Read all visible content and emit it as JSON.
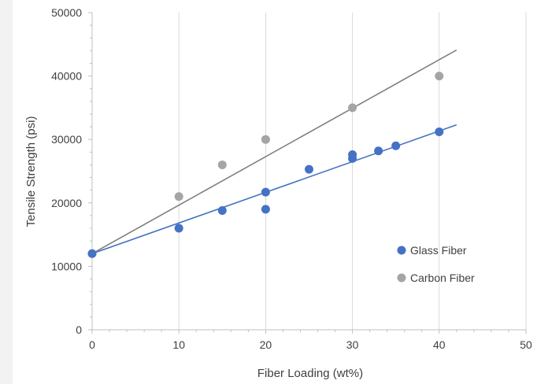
{
  "colors": {
    "glass": "#4472C4",
    "carbon": "#A5A5A5",
    "carbon_line": "#808080",
    "grid": "#D9D9D9",
    "axis": "#BFBFBF",
    "text": "#404040",
    "frame_bg": "#F2F2F2"
  },
  "chart_data": {
    "type": "scatter",
    "title": "",
    "xlabel": "Fiber Loading (wt%)",
    "ylabel": "Tensile Strength (psi)",
    "xlim": [
      0,
      50
    ],
    "ylim": [
      0,
      50000
    ],
    "x_ticks": [
      0,
      10,
      20,
      30,
      40,
      50
    ],
    "y_ticks": [
      0,
      10000,
      20000,
      30000,
      40000,
      50000
    ],
    "grid": {
      "vertical_major": true,
      "horizontal_major": false
    },
    "legend_position": "right",
    "series": [
      {
        "name": "Glass Fiber",
        "color": "#4472C4",
        "points": [
          [
            0,
            12000
          ],
          [
            10,
            16000
          ],
          [
            15,
            18800
          ],
          [
            20,
            19000
          ],
          [
            20,
            21700
          ],
          [
            25,
            25300
          ],
          [
            30,
            27000
          ],
          [
            30,
            27600
          ],
          [
            33,
            28200
          ],
          [
            35,
            29000
          ],
          [
            40,
            31200
          ]
        ],
        "trendline": {
          "type": "linear",
          "x_range": [
            0,
            42
          ],
          "y_range": [
            12000,
            32300
          ]
        }
      },
      {
        "name": "Carbon Fiber",
        "color": "#A5A5A5",
        "points": [
          [
            0,
            12000
          ],
          [
            10,
            21000
          ],
          [
            15,
            26000
          ],
          [
            20,
            30000
          ],
          [
            30,
            35000
          ],
          [
            40,
            40000
          ]
        ],
        "trendline": {
          "type": "linear",
          "x_range": [
            0,
            42
          ],
          "y_range": [
            12000,
            44100
          ]
        }
      }
    ]
  }
}
